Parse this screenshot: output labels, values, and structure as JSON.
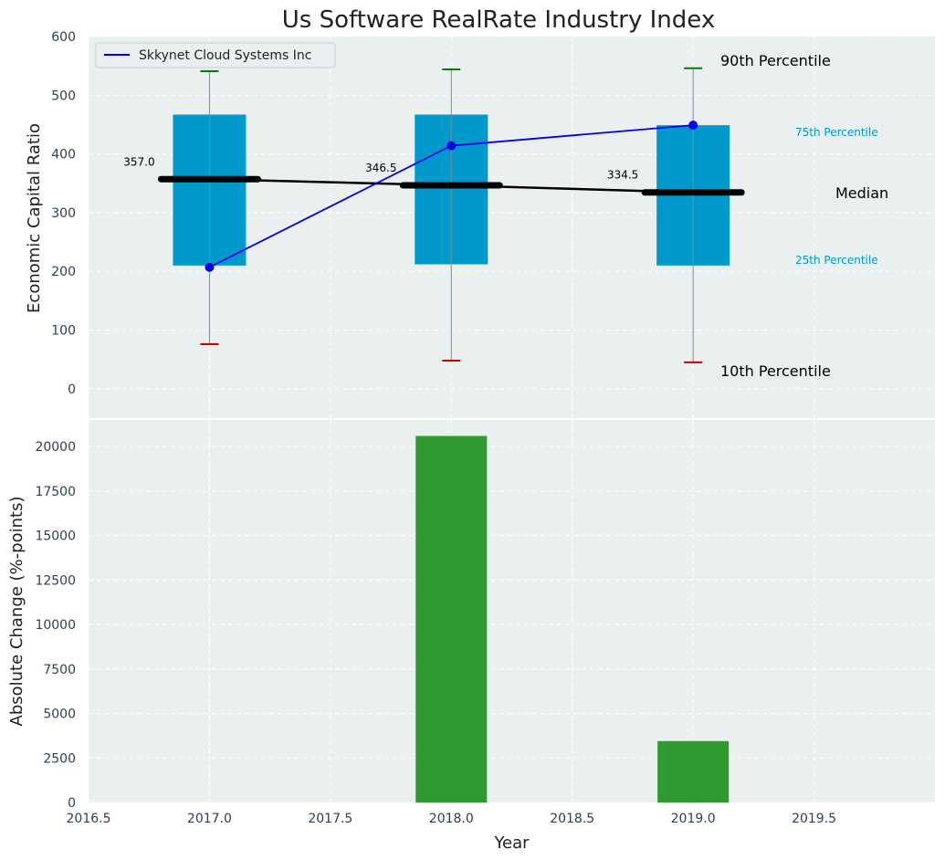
{
  "chart_data": [
    {
      "type": "box",
      "title": "Us Software RealRate Industry Index",
      "ylabel": "Economic Capital Ratio",
      "xlabel": "",
      "xlim": [
        2016.5,
        2020.0
      ],
      "ylim": [
        -50,
        600
      ],
      "x_ticks": [
        "2016.5",
        "2017.0",
        "2017.5",
        "2018.0",
        "2018.5",
        "2019.0",
        "2019.5"
      ],
      "y_ticks": [
        "0",
        "100",
        "200",
        "300",
        "400",
        "500",
        "600"
      ],
      "grid": true,
      "legend_position": "top-left",
      "boxes": [
        {
          "x": 2017,
          "p10": 76,
          "p25": 210,
          "median": 357.0,
          "p75": 467,
          "p90": 541,
          "median_label": "357.0"
        },
        {
          "x": 2018,
          "p10": 48,
          "p25": 212,
          "median": 346.5,
          "p75": 467,
          "p90": 544,
          "median_label": "346.5"
        },
        {
          "x": 2019,
          "p10": 45,
          "p25": 210,
          "median": 334.5,
          "p75": 449,
          "p90": 546,
          "median_label": "334.5"
        }
      ],
      "series": [
        {
          "name": "Skkynet Cloud Systems Inc",
          "x": [
            2017,
            2018,
            2019
          ],
          "values": [
            207,
            414,
            449
          ],
          "color": "#0000ee"
        }
      ],
      "annotations": {
        "p90": "90th Percentile",
        "p75": "75th Percentile",
        "median": "Median",
        "p25": "25th Percentile",
        "p10": "10th Percentile"
      },
      "colors": {
        "box": "#0099cc",
        "median": "#000000",
        "whisker_high": "#008000",
        "whisker_low": "#cc0000",
        "background": "#eaeff0"
      }
    },
    {
      "type": "bar",
      "xlabel": "Year",
      "ylabel": "Absolute Change (%-points)",
      "xlim": [
        2016.5,
        2020.0
      ],
      "ylim": [
        0,
        21500
      ],
      "x_ticks": [
        "2016.5",
        "2017.0",
        "2017.5",
        "2018.0",
        "2018.5",
        "2019.0",
        "2019.5"
      ],
      "y_ticks": [
        "0",
        "2500",
        "5000",
        "7500",
        "10000",
        "12500",
        "15000",
        "17500",
        "20000"
      ],
      "grid": true,
      "x": [
        2018,
        2019
      ],
      "values": [
        20600,
        3450
      ],
      "colors": {
        "bar": "#2e9a30",
        "background": "#eaeff0"
      }
    }
  ]
}
